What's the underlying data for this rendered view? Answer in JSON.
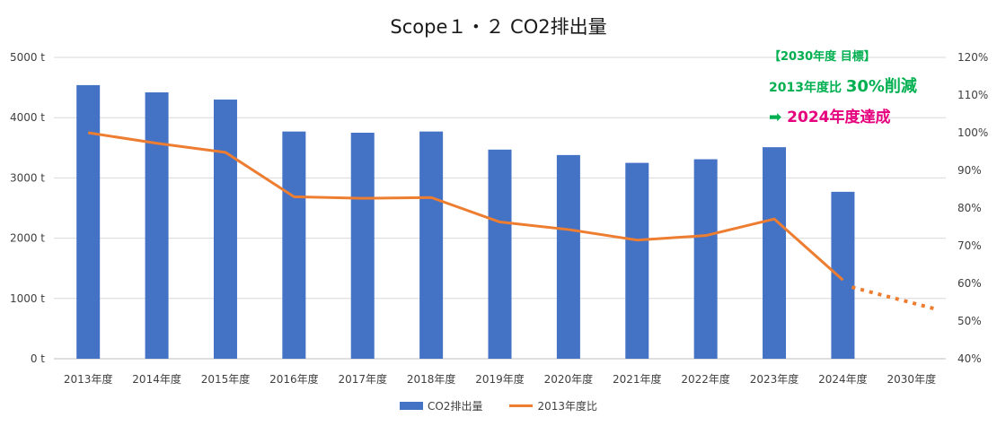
{
  "chart_data": {
    "type": "bar",
    "title": "Scope１・２ CO2排出量",
    "categories": [
      "2013年度",
      "2014年度",
      "2015年度",
      "2016年度",
      "2017年度",
      "2018年度",
      "2019年度",
      "2020年度",
      "2021年度",
      "2022年度",
      "2023年度",
      "2024年度",
      "2030年度"
    ],
    "series": [
      {
        "name": "CO2排出量",
        "type": "bar",
        "axis": "left",
        "color": "#4472c4",
        "values": [
          4540,
          4420,
          4300,
          3770,
          3750,
          3770,
          3470,
          3380,
          3250,
          3310,
          3510,
          2770,
          null
        ]
      },
      {
        "name": "2013年度比",
        "type": "line",
        "axis": "right",
        "color": "#ed7d31",
        "values_percent": [
          100,
          97.2,
          94.8,
          83.0,
          82.6,
          82.8,
          76.3,
          74.3,
          71.5,
          72.7,
          77.1,
          60.9,
          null
        ],
        "projection_percent": [
          {
            "category": "2024年度",
            "value": 59
          },
          {
            "category": "2030年度",
            "value": 53
          }
        ]
      }
    ],
    "y_left": {
      "min": 0,
      "max": 5000,
      "step": 1000,
      "ticks": [
        "0 t",
        "1000 t",
        "2000 t",
        "3000 t",
        "4000 t",
        "5000 t"
      ]
    },
    "y_right": {
      "min": 40,
      "max": 120,
      "step": 10,
      "ticks": [
        "40%",
        "50%",
        "60%",
        "70%",
        "80%",
        "90%",
        "100%",
        "110%",
        "120%"
      ]
    },
    "grid": true,
    "legend_position": "bottom"
  },
  "annotation": {
    "line1": "【2030年度 目標】",
    "line2_prefix": "2013年度比",
    "line2_value": "30%削減",
    "line3_arrow": "➡",
    "line3_text": "2024年度達成"
  },
  "colors": {
    "bar": "#4472c4",
    "line": "#ed7d31",
    "annotation_green": "#00b050",
    "annotation_pink": "#e6007e",
    "grid": "#d9d9d9"
  }
}
